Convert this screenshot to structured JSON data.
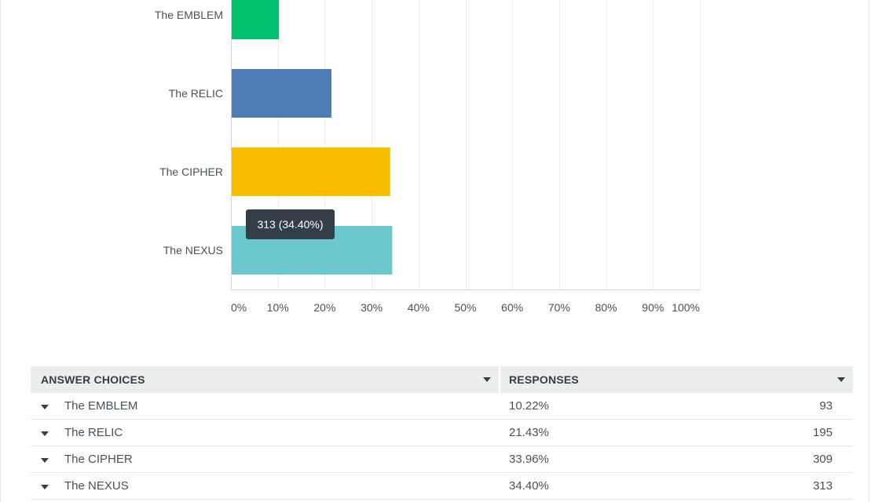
{
  "chart_data": {
    "type": "bar",
    "orientation": "horizontal",
    "categories": [
      "The EMBLEM",
      "The RELIC",
      "The CIPHER",
      "The NEXUS"
    ],
    "values": [
      10.22,
      21.43,
      33.96,
      34.4
    ],
    "colors": [
      "#00bf6f",
      "#507cb6",
      "#f9be00",
      "#6bc8cd"
    ],
    "x_ticks": [
      "0%",
      "10%",
      "20%",
      "30%",
      "40%",
      "50%",
      "60%",
      "70%",
      "80%",
      "90%",
      "100%"
    ],
    "xlim": [
      0,
      100
    ],
    "grid": true
  },
  "tooltip": {
    "text": "313 (34.40%)",
    "category": "The NEXUS"
  },
  "table": {
    "headers": {
      "answer_choices": "ANSWER CHOICES",
      "responses": "RESPONSES"
    },
    "rows": [
      {
        "label": "The EMBLEM",
        "percent": "10.22%",
        "count": "93"
      },
      {
        "label": "The RELIC",
        "percent": "21.43%",
        "count": "195"
      },
      {
        "label": "The CIPHER",
        "percent": "33.96%",
        "count": "309"
      },
      {
        "label": "The NEXUS",
        "percent": "34.40%",
        "count": "313"
      }
    ]
  },
  "icons": {
    "header_sort": "caret-down-icon",
    "row_expand": "caret-down-icon"
  }
}
